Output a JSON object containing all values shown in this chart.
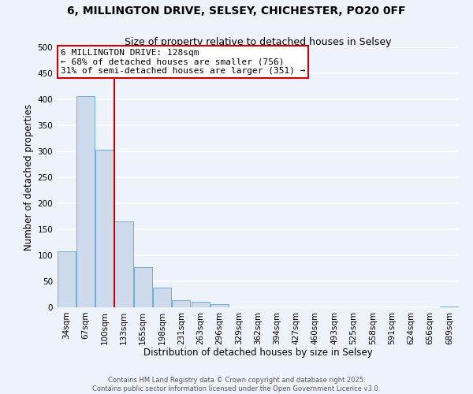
{
  "title": "6, MILLINGTON DRIVE, SELSEY, CHICHESTER, PO20 0FF",
  "subtitle": "Size of property relative to detached houses in Selsey",
  "xlabel": "Distribution of detached houses by size in Selsey",
  "ylabel": "Number of detached properties",
  "bar_labels": [
    "34sqm",
    "67sqm",
    "100sqm",
    "133sqm",
    "165sqm",
    "198sqm",
    "231sqm",
    "263sqm",
    "296sqm",
    "329sqm",
    "362sqm",
    "394sqm",
    "427sqm",
    "460sqm",
    "493sqm",
    "525sqm",
    "558sqm",
    "591sqm",
    "624sqm",
    "656sqm",
    "689sqm"
  ],
  "bar_values": [
    108,
    406,
    303,
    165,
    77,
    38,
    13,
    10,
    6,
    0,
    0,
    0,
    0,
    0,
    0,
    0,
    0,
    0,
    0,
    0,
    2
  ],
  "bar_color": "#ccdaeb",
  "bar_edge_color": "#6aaed6",
  "background_color": "#eef2fb",
  "grid_color": "#ffffff",
  "vline_color": "#cc0000",
  "annotation_line1": "6 MILLINGTON DRIVE: 128sqm",
  "annotation_line2": "← 68% of detached houses are smaller (756)",
  "annotation_line3": "31% of semi-detached houses are larger (351) →",
  "annotation_box_color": "#ffffff",
  "annotation_box_edge": "#cc0000",
  "ylim": [
    0,
    500
  ],
  "yticks": [
    0,
    50,
    100,
    150,
    200,
    250,
    300,
    350,
    400,
    450,
    500
  ],
  "footer1": "Contains HM Land Registry data © Crown copyright and database right 2025.",
  "footer2": "Contains public sector information licensed under the Open Government Licence v3.0.",
  "title_fontsize": 10,
  "subtitle_fontsize": 9,
  "axis_label_fontsize": 8.5,
  "tick_fontsize": 7.5,
  "annotation_fontsize": 8,
  "footer_fontsize": 6
}
